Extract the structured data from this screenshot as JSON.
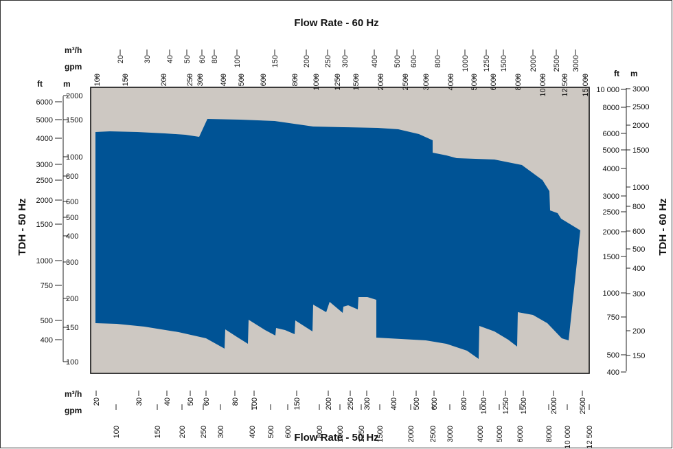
{
  "chart_data": {
    "type": "area",
    "title_top": "Flow Rate - 60 Hz",
    "title_bottom": "Flow Rate - 50 Hz",
    "ylabel_left": "TDH - 50 Hz",
    "ylabel_right": "TDH - 60 Hz",
    "colors": {
      "background": "#cdc8c2",
      "area": "#005395",
      "frame": "#333333"
    },
    "top_axis": {
      "m3h_unit": "m³/h",
      "gpm_unit": "gpm",
      "m3h_ticks": [
        "20",
        "30",
        "40",
        "50",
        "60",
        "80",
        "100",
        "150",
        "200",
        "250",
        "300",
        "400",
        "500",
        "600",
        "800",
        "1000",
        "1250",
        "1500",
        "2000",
        "2500",
        "3000"
      ],
      "gpm_ticks": [
        "100",
        "150",
        "200",
        "250",
        "300",
        "400",
        "500",
        "600",
        "800",
        "1000",
        "1250",
        "1500",
        "2000",
        "2500",
        "3000",
        "4000",
        "5000",
        "6000",
        "8000",
        "10 000",
        "12 500",
        "15 000"
      ]
    },
    "bottom_axis": {
      "m3h_unit": "m³/h",
      "gpm_unit": "gpm",
      "m3h_ticks": [
        "20",
        "30",
        "40",
        "50",
        "60",
        "80",
        "100",
        "150",
        "200",
        "250",
        "300",
        "400",
        "500",
        "600",
        "800",
        "1000",
        "1250",
        "1500",
        "2000",
        "2500"
      ],
      "gpm_ticks": [
        "100",
        "150",
        "200",
        "250",
        "300",
        "400",
        "500",
        "600",
        "800",
        "1000",
        "1250",
        "1500",
        "2000",
        "2500",
        "3000",
        "4000",
        "5000",
        "6000",
        "8000",
        "10 000",
        "12 500"
      ]
    },
    "left_axis": {
      "ft_unit": "ft",
      "m_unit": "m",
      "ft_ticks": [
        "6000",
        "5000",
        "4000",
        "3000",
        "2500",
        "2000",
        "1500",
        "1000",
        "750",
        "500",
        "400"
      ],
      "m_ticks": [
        "2000",
        "1500",
        "1000",
        "800",
        "600",
        "500",
        "400",
        "300",
        "200",
        "150",
        "100"
      ]
    },
    "right_axis": {
      "ft_unit": "ft",
      "m_unit": "m",
      "ft_ticks": [
        "10 000",
        "8000",
        "6000",
        "5000",
        "4000",
        "3000",
        "2500",
        "2000",
        "1500",
        "1000",
        "750",
        "500",
        "400"
      ],
      "m_ticks": [
        "3000",
        "2500",
        "2000",
        "1500",
        "1000",
        "800",
        "600",
        "500",
        "400",
        "300",
        "200",
        "150"
      ]
    }
  }
}
